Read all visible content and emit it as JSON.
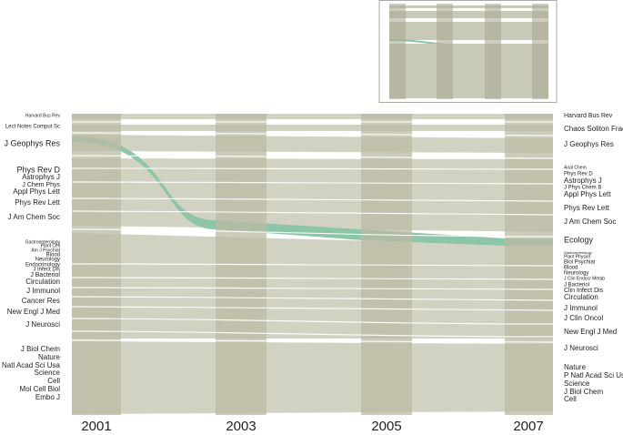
{
  "years": [
    "2001",
    "2003",
    "2005",
    "2007"
  ],
  "left_labels": [
    "Harvard Bus Rev",
    "Lect Notes Comput Sc",
    "J Geophys Res",
    "Phys Rev D",
    "Astrophys J",
    "J Chem Phys",
    "Appl Phys Lett",
    "Phys Rev Lett",
    "J Am Chem Soc",
    "Gastroenterology",
    "Plant Cell",
    "Am J Psychiat",
    "Blood",
    "Neurology",
    "Endocrinology",
    "J Infect Dis",
    "J Bacteriol",
    "Circulation",
    "J Immunol",
    "Cancer Res",
    "New Engl J Med",
    "J Neurosci",
    "J Biol Chem",
    "Nature",
    "P Natl Acad Sci Usa",
    "Science",
    "Cell",
    "Mol Cell Biol",
    "Embo J"
  ],
  "right_labels": [
    "Harvard Bus Rev",
    "Chaos Soliton Fract",
    "J Geophys Res",
    "Anal Chem",
    "Phys Rev D",
    "Astrophys J",
    "J Phys Chem B",
    "Appl Phys Lett",
    "Phys Rev Lett",
    "J Am Chem Soc",
    "Ecology",
    "Gastroenterology",
    "Plant Physiol",
    "Biol Psychiat",
    "Blood",
    "Neurology",
    "J Clin Endocr Metab",
    "J Bacteriol",
    "Clin Infect Dis",
    "Circulation",
    "J Immunol",
    "J Clin Oncol",
    "New Engl J Med",
    "J Neurosci",
    "Nature",
    "P Natl Acad Sci Usa",
    "Science",
    "J Biol Chem",
    "Cell"
  ]
}
